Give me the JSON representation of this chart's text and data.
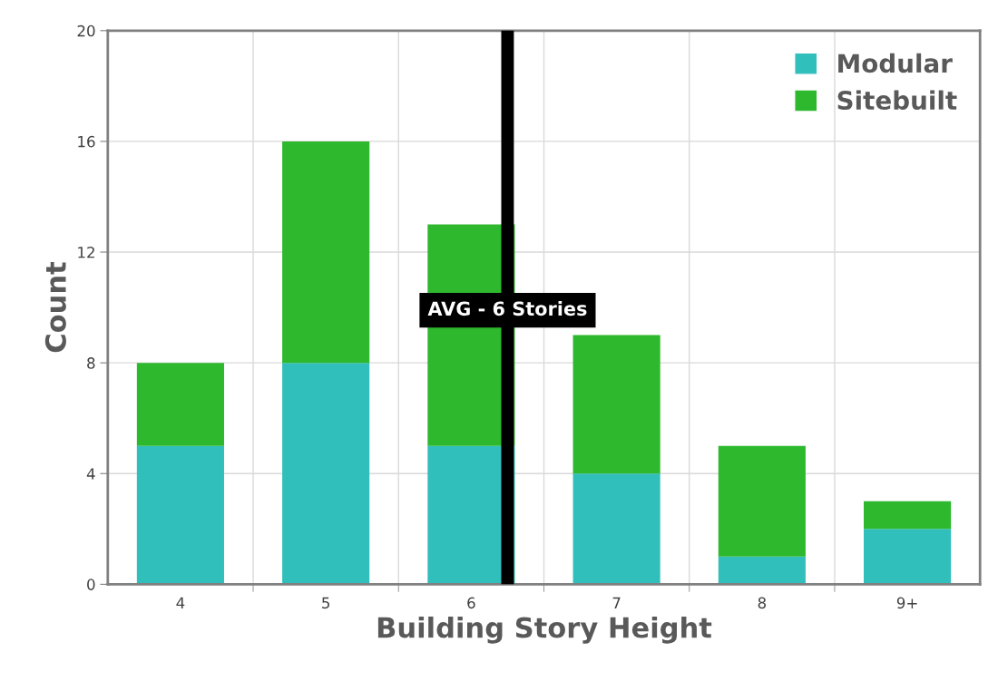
{
  "chart_data": {
    "type": "bar",
    "stacked": true,
    "xlabel": "Building Story Height",
    "ylabel": "Count",
    "categories": [
      "4",
      "5",
      "6",
      "7",
      "8",
      "9+"
    ],
    "series": [
      {
        "name": "Modular",
        "color": "#31bfbc",
        "values": [
          5,
          8,
          5,
          4,
          1,
          2
        ]
      },
      {
        "name": "Sitebuilt",
        "color": "#2eb82e",
        "values": [
          3,
          8,
          8,
          5,
          4,
          1
        ]
      }
    ],
    "ylim": [
      0,
      20
    ],
    "yticks": [
      0,
      4,
      8,
      12,
      16,
      20
    ],
    "grid": true,
    "legend": "top right",
    "ref_lines": [
      {
        "axis": "x",
        "value": "6",
        "label": "AVG - 6 Stories",
        "color": "#000000"
      }
    ]
  }
}
